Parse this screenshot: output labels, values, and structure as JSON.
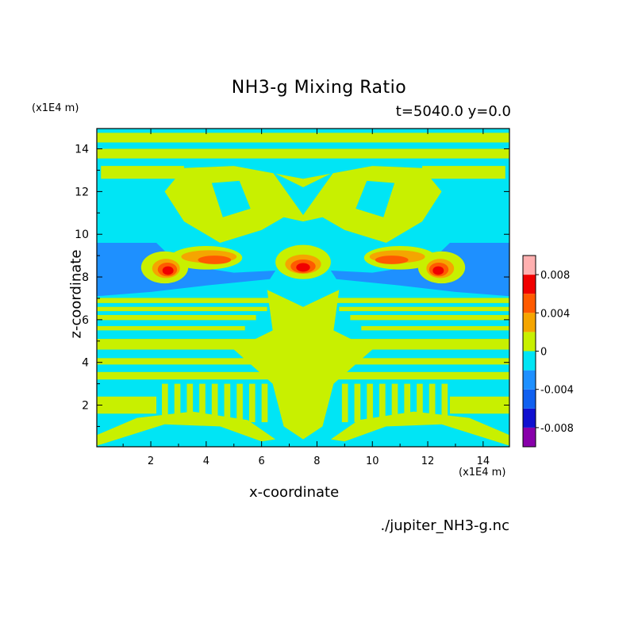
{
  "chart_data": {
    "type": "heatmap",
    "title": "NH3-g Mixing Ratio",
    "subtitle": "t=5040.0 y=0.0",
    "xlabel": "x-coordinate",
    "ylabel": "z-coordinate",
    "x_unit": "(x1E4 m)",
    "z_unit": "(x1E4 m)",
    "source": "./jupiter_NH3-g.nc",
    "xlim": [
      0.05,
      14.95
    ],
    "ylim": [
      0.05,
      14.95
    ],
    "x_ticks": [
      2,
      4,
      6,
      8,
      10,
      12,
      14
    ],
    "y_ticks": [
      2,
      4,
      6,
      8,
      10,
      12,
      14
    ],
    "colorbar": {
      "levels": [
        -0.01,
        -0.008,
        -0.006,
        -0.004,
        -0.002,
        0,
        0.002,
        0.004,
        0.006,
        0.008,
        0.01
      ],
      "colors": [
        "#8800aa",
        "#1010d0",
        "#1060f0",
        "#1e90ff",
        "#00e5f5",
        "#c8f000",
        "#f5a500",
        "#ff5a00",
        "#f00000",
        "#ffb0b0"
      ],
      "tick_labels": [
        "0.008",
        "0.004",
        "0",
        "-0.004",
        "-0.008"
      ],
      "tick_values": [
        0.008,
        0.004,
        0,
        -0.004,
        -0.008
      ]
    }
  }
}
